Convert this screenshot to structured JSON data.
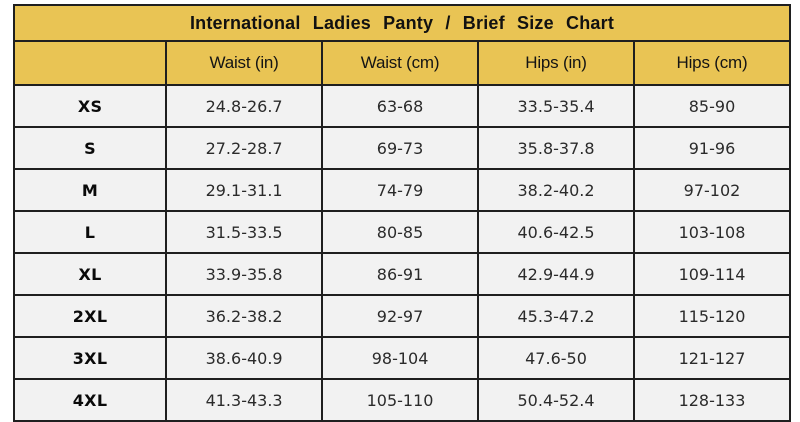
{
  "colors": {
    "header_gold": "#E9C454",
    "row_background": "#F2F2F2",
    "border": "#1F1F1F",
    "page_background": "#FFFFFF",
    "title_text": "#111111",
    "cell_text": "#2B2B2B"
  },
  "chart_data": {
    "type": "table",
    "title": "International Ladies Panty / Brief Size Chart",
    "columns": [
      "",
      "Waist (in)",
      "Waist (cm)",
      "Hips (in)",
      "Hips (cm)"
    ],
    "rows": [
      {
        "size": "XS",
        "values": [
          "24.8-26.7",
          "63-68",
          "33.5-35.4",
          "85-90"
        ]
      },
      {
        "size": "S",
        "values": [
          "27.2-28.7",
          "69-73",
          "35.8-37.8",
          "91-96"
        ]
      },
      {
        "size": "M",
        "values": [
          "29.1-31.1",
          "74-79",
          "38.2-40.2",
          "97-102"
        ]
      },
      {
        "size": "L",
        "values": [
          "31.5-33.5",
          "80-85",
          "40.6-42.5",
          "103-108"
        ]
      },
      {
        "size": "XL",
        "values": [
          "33.9-35.8",
          "86-91",
          "42.9-44.9",
          "109-114"
        ]
      },
      {
        "size": "2XL",
        "values": [
          "36.2-38.2",
          "92-97",
          "45.3-47.2",
          "115-120"
        ]
      },
      {
        "size": "3XL",
        "values": [
          "38.6-40.9",
          "98-104",
          "47.6-50",
          "121-127"
        ]
      },
      {
        "size": "4XL",
        "values": [
          "41.3-43.3",
          "105-110",
          "50.4-52.4",
          "128-133"
        ]
      }
    ]
  }
}
